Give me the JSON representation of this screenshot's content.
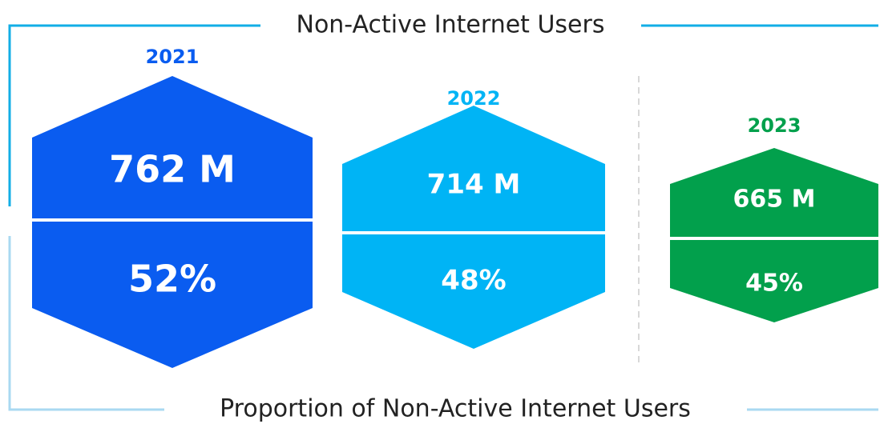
{
  "header": {
    "title": "Non-Active Internet Users"
  },
  "footer": {
    "title": "Proportion of Non-Active Internet Users"
  },
  "items": [
    {
      "year": "2021",
      "users": "762 M",
      "share": "52%"
    },
    {
      "year": "2022",
      "users": "714 M",
      "share": "48%"
    },
    {
      "year": "2023",
      "users": "665 M",
      "share": "45%"
    }
  ]
}
